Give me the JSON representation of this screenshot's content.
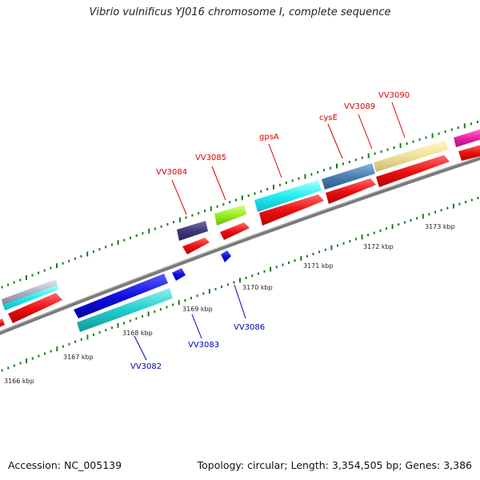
{
  "title": "Vibrio vulnificus YJ016 chromosome I, complete sequence",
  "footer": {
    "accession": "Accession: NC_005139",
    "topology": "Topology: circular; Length: 3,354,505 bp; Genes: 3,386"
  },
  "scale_labels": [
    "3166 kbp",
    "3167 kbp",
    "3168 kbp",
    "3169 kbp",
    "3170 kbp",
    "3171 kbp",
    "3172 kbp",
    "3173 kbp"
  ],
  "forward_gene_labels": [
    "VV3084",
    "VV3085",
    "gpsA",
    "cysE",
    "VV3089",
    "VV3090"
  ],
  "reverse_gene_labels": [
    "VV3082",
    "VV3083",
    "VV3086"
  ],
  "colors": {
    "forward_label": "#dd0000",
    "reverse_label": "#0000bb",
    "backbone": "#7a7a7a",
    "tick": "#1a7a1a",
    "cds_strand": "#ee1111"
  }
}
